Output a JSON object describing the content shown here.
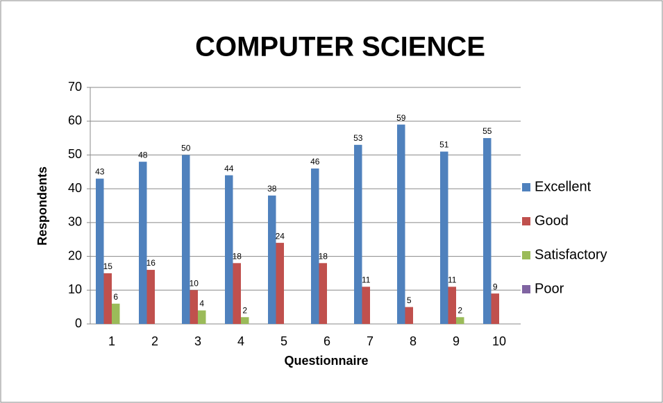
{
  "chart_data": {
    "type": "bar",
    "title": "COMPUTER SCIENCE",
    "xlabel": "Questionnaire",
    "ylabel": "Respondents",
    "categories": [
      "1",
      "2",
      "3",
      "4",
      "5",
      "6",
      "7",
      "8",
      "9",
      "10"
    ],
    "series": [
      {
        "name": "Excellent",
        "color": "#4f81bd",
        "values": [
          43,
          48,
          50,
          44,
          38,
          46,
          53,
          59,
          51,
          55
        ]
      },
      {
        "name": "Good",
        "color": "#c0504d",
        "values": [
          15,
          16,
          10,
          18,
          24,
          18,
          11,
          5,
          11,
          9
        ]
      },
      {
        "name": "Satisfactory",
        "color": "#9bbb59",
        "values": [
          6,
          0,
          4,
          2,
          0,
          0,
          0,
          0,
          2,
          0
        ]
      },
      {
        "name": "Poor",
        "color": "#8064a2",
        "values": [
          0,
          0,
          0,
          0,
          0,
          0,
          0,
          0,
          0,
          0
        ]
      }
    ],
    "ylim": [
      0,
      70
    ],
    "yticks": [
      0,
      10,
      20,
      30,
      40,
      50,
      60,
      70
    ],
    "grid": true,
    "legend": "right"
  }
}
